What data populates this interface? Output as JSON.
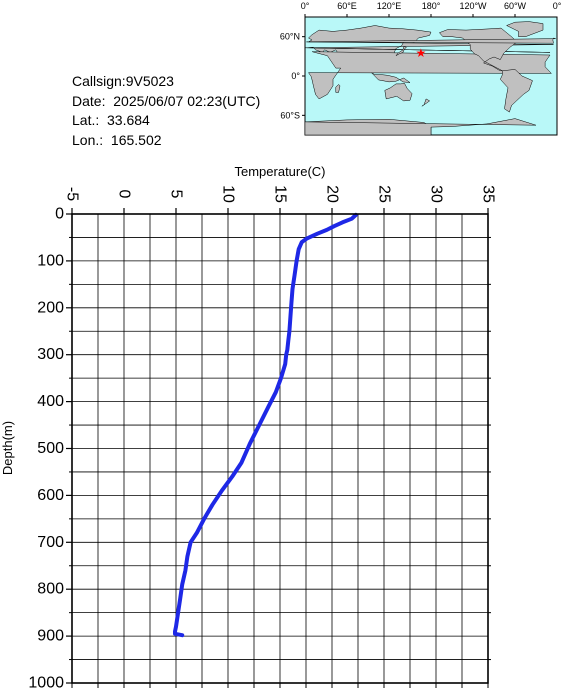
{
  "info": {
    "callsign": "Callsign:9V5023",
    "date": "Date:  2025/06/07 02:23(UTC)",
    "lat": "Lat.:  33.684",
    "lon": "Lon.:  165.502"
  },
  "map": {
    "top_labels": [
      "0°",
      "60°E",
      "120°E",
      "180°",
      "120°W",
      "60°W",
      "0°"
    ],
    "left_labels": [
      "60°N",
      "0°",
      "60°S"
    ],
    "marker": {
      "lat": 33.684,
      "lon": 165.502,
      "color": "#ff0000",
      "icon": "star-icon"
    },
    "ocean_color": "#b9f8f8",
    "land_color": "#c0c0c0"
  },
  "chart_data": {
    "type": "line",
    "title": "",
    "xlabel": "Temperature(C)",
    "ylabel": "Depth(m)",
    "xlim": [
      -5,
      35
    ],
    "ylim": [
      1000,
      0
    ],
    "x_ticks": [
      "-5",
      "0",
      "5",
      "10",
      "15",
      "20",
      "25",
      "30",
      "35"
    ],
    "y_ticks": [
      "0",
      "100",
      "200",
      "300",
      "400",
      "500",
      "600",
      "700",
      "800",
      "900",
      "1000"
    ],
    "grid": true,
    "line_color": "#1e28e6",
    "series": [
      {
        "x": [
          22.3,
          21.9,
          21.0,
          20.2,
          19.5,
          18.6,
          17.6,
          17.1,
          16.8,
          16.6,
          16.4,
          16.2,
          16.1,
          16.0,
          15.9,
          15.8,
          15.7,
          15.6,
          15.5,
          15.1,
          14.6,
          13.9,
          13.0,
          12.1,
          11.3,
          10.4,
          9.4,
          8.5,
          7.7,
          7.0,
          6.4,
          6.1,
          5.9,
          5.6,
          5.4,
          5.2,
          5.0,
          4.9,
          4.9,
          5.6
        ],
        "y": [
          2,
          10,
          18,
          26,
          34,
          42,
          52,
          60,
          75,
          100,
          130,
          160,
          190,
          220,
          250,
          270,
          290,
          300,
          320,
          350,
          380,
          410,
          450,
          490,
          530,
          560,
          590,
          620,
          650,
          680,
          700,
          730,
          760,
          790,
          820,
          850,
          880,
          890,
          895,
          898
        ]
      }
    ]
  }
}
